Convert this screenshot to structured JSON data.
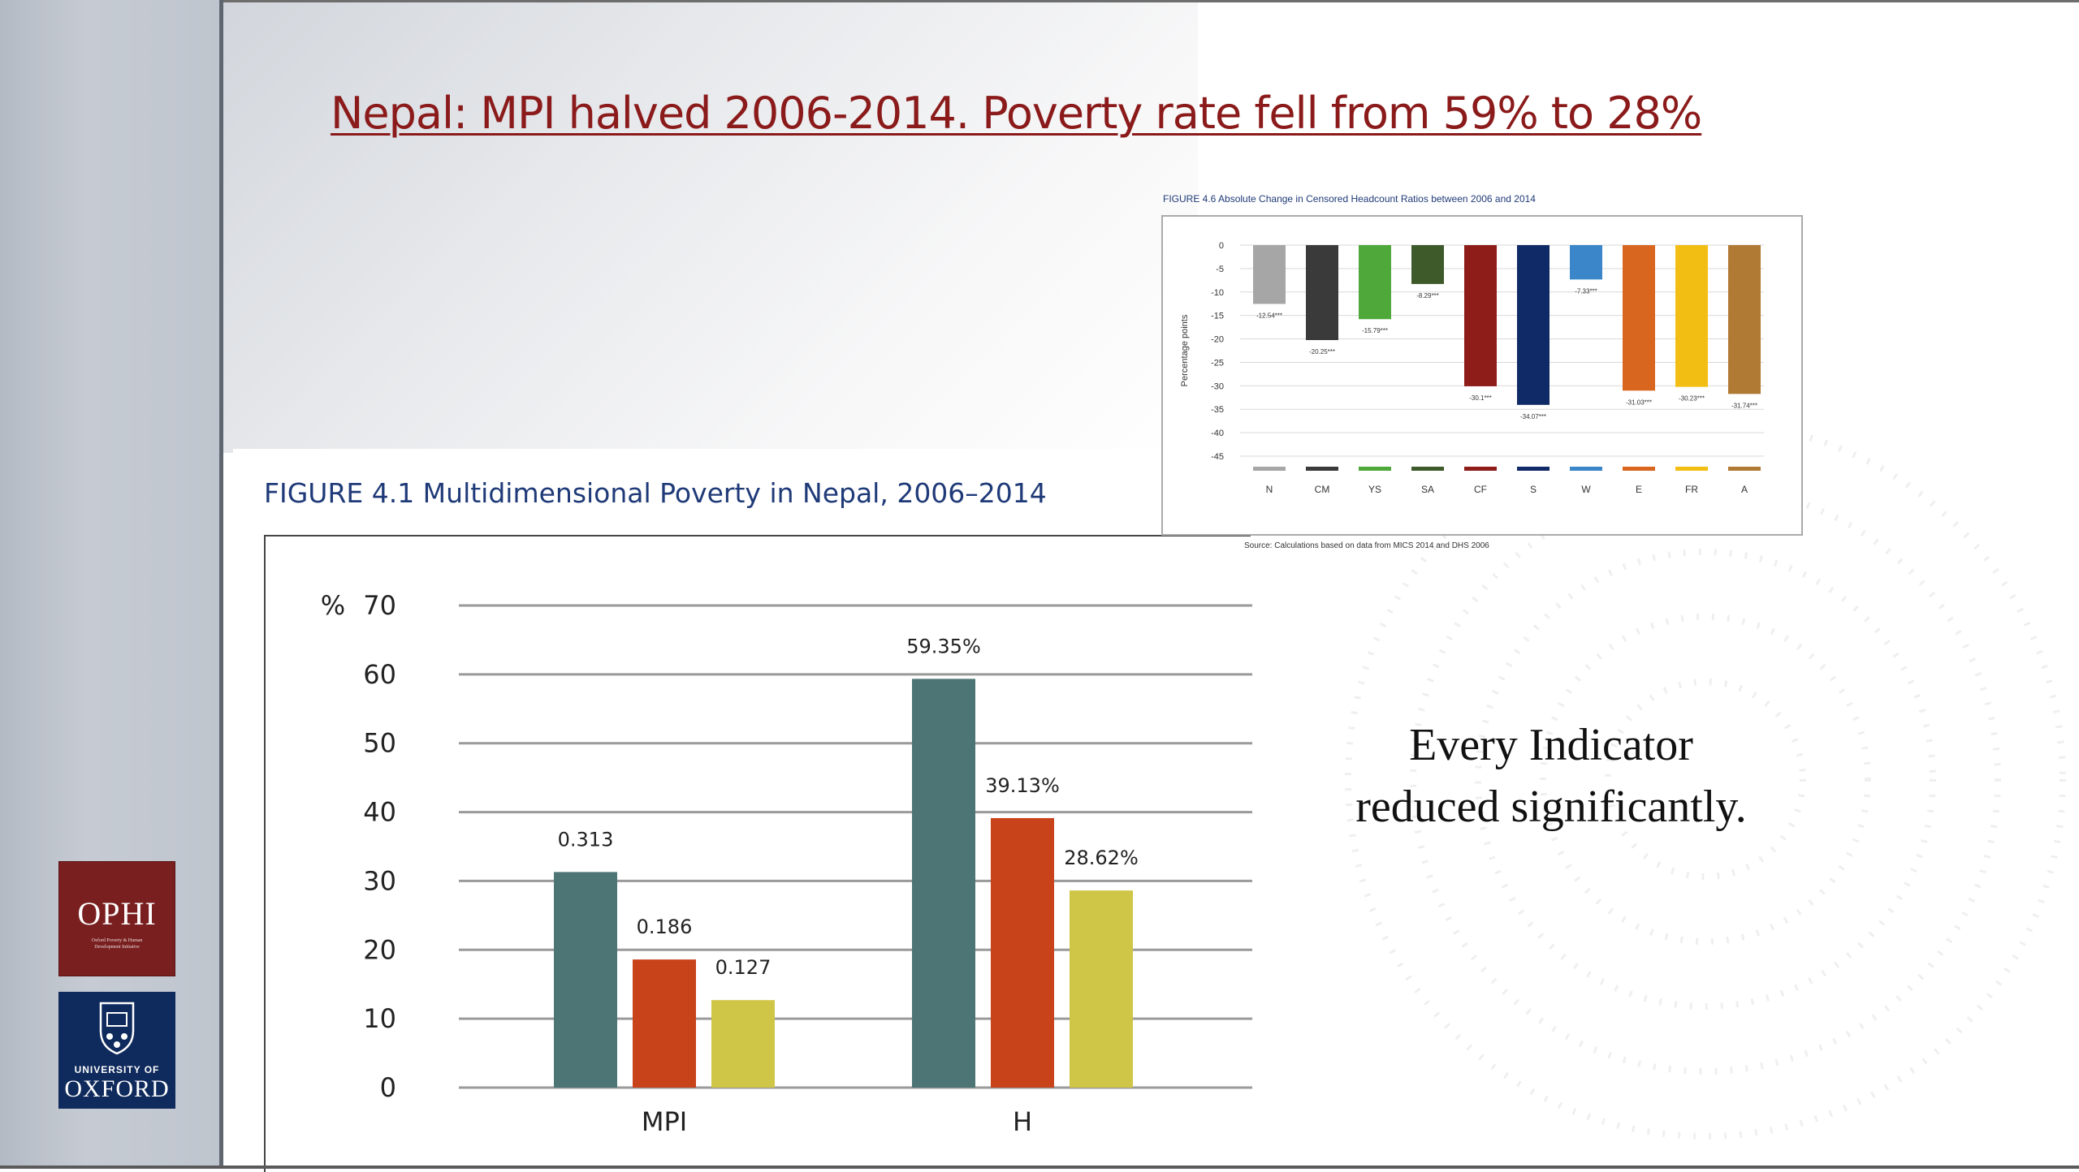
{
  "slide": {
    "title": "Nepal: MPI halved 2006-2014. Poverty rate fell from 59% to 28%",
    "caption_line1": "Every Indicator",
    "caption_line2": "reduced significantly."
  },
  "logos": {
    "ophi_name": "OPHI",
    "ophi_subtitle": "Oxford Poverty & Human Development Initiative",
    "university_label": "UNIVERSITY OF",
    "oxford_name": "OXFORD"
  },
  "figure_4_1": {
    "title": "FIGURE 4.1 Multidimensional Poverty in Nepal, 2006–2014"
  },
  "figure_4_6": {
    "title": "FIGURE 4.6 Absolute Change in Censored Headcount Ratios between 2006 and 2014",
    "source": "Source: Calculations based on data from MICS 2014 and DHS 2006"
  },
  "colors": {
    "teal": "#4e7576",
    "orange_red": "#c8421a",
    "olive_yellow": "#cfc546",
    "title_red": "#8b1a1a",
    "figure_blue": "#1f3a78"
  },
  "chart_data": [
    {
      "type": "bar",
      "categories": [
        "MPI",
        "H"
      ],
      "unit_label": "%",
      "ylim": [
        0,
        70
      ],
      "yticks": [
        0,
        10,
        20,
        30,
        40,
        50,
        60,
        70
      ],
      "grid": true,
      "series": [
        {
          "color": "#4e7576",
          "values": [
            31.3,
            59.35
          ],
          "labels": [
            "0.313",
            "59.35%"
          ]
        },
        {
          "color": "#c8421a",
          "values": [
            18.6,
            39.13
          ],
          "labels": [
            "0.186",
            "39.13%"
          ]
        },
        {
          "color": "#cfc546",
          "values": [
            12.7,
            28.62
          ],
          "labels": [
            "0.127",
            "28.62%"
          ]
        }
      ]
    },
    {
      "type": "bar",
      "ylabel": "Percentage points",
      "ylim": [
        -45,
        0
      ],
      "yticks": [
        0,
        -5,
        -10,
        -15,
        -20,
        -25,
        -30,
        -35,
        -40,
        -45
      ],
      "grid": true,
      "categories": [
        "N",
        "CM",
        "YS",
        "SA",
        "CF",
        "S",
        "W",
        "E",
        "FR",
        "A"
      ],
      "values": [
        -12.54,
        -20.25,
        -15.79,
        -8.29,
        -30.1,
        -34.07,
        -7.33,
        -31.03,
        -30.23,
        -31.74
      ],
      "labels": [
        "-12.54***",
        "-20.25***",
        "-15.79***",
        "-8.29***",
        "-30.1***",
        "-34.07***",
        "-7.33***",
        "-31.03***",
        "-30.23***",
        "-31.74***"
      ],
      "colors": [
        "#a6a6a6",
        "#3a3a3a",
        "#4ea83a",
        "#3e5a2a",
        "#8e1c18",
        "#0f2a66",
        "#3a86c8",
        "#d8661e",
        "#f2be14",
        "#b07a34"
      ]
    }
  ]
}
